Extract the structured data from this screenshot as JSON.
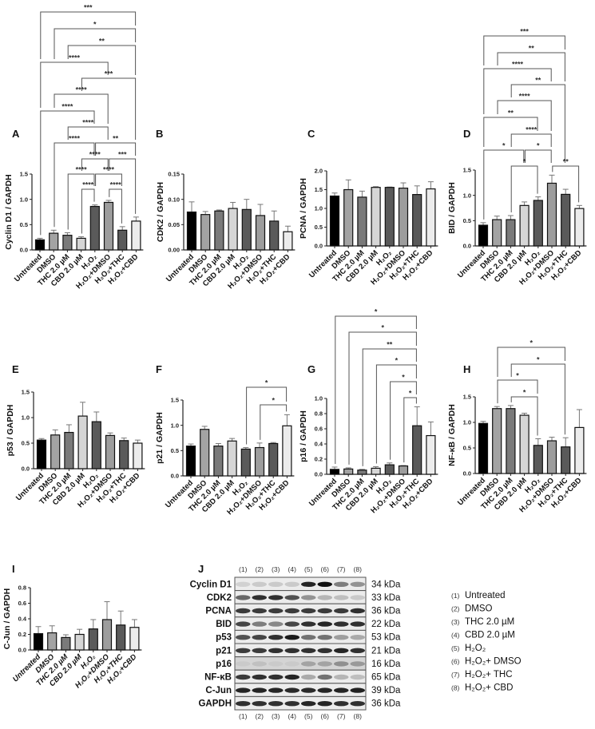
{
  "bar_colors": [
    "#000000",
    "#a3a3a3",
    "#7a7a7a",
    "#d6d6d6",
    "#5a5a5a",
    "#9d9d9d",
    "#5a5a5a",
    "#ececec"
  ],
  "chart_data": [
    {
      "panel": "A",
      "type": "bar",
      "ylabel": "Cyclin D1 / GAPDH",
      "categories": [
        "Untreated",
        "DMSO",
        "THC 2.0 µM",
        "CBD 2.0 µM",
        "H₂O₂",
        "H₂O₂+DMSO",
        "H₂O₂+THC",
        "H₂O₂+CBD"
      ],
      "values": [
        0.2,
        0.33,
        0.29,
        0.23,
        0.86,
        0.94,
        0.39,
        0.57
      ],
      "errors": [
        0.03,
        0.06,
        0.05,
        0.03,
        0.03,
        0.04,
        0.07,
        0.08
      ],
      "ylim": [
        0,
        1.5
      ],
      "yticks": [
        "0.0",
        "0.5",
        "1.0",
        "1.5"
      ],
      "comparisons": [
        {
          "from": 0,
          "to": 7,
          "label": "***"
        },
        {
          "from": 1,
          "to": 7,
          "label": "*"
        },
        {
          "from": 2,
          "to": 7,
          "label": "**"
        },
        {
          "from": 0,
          "to": 5,
          "label": "****"
        },
        {
          "from": 3,
          "to": 7,
          "label": "***"
        },
        {
          "from": 1,
          "to": 5,
          "label": "****"
        },
        {
          "from": 0,
          "to": 4,
          "label": "****"
        },
        {
          "from": 2,
          "to": 5,
          "label": "****"
        },
        {
          "from": 1,
          "to": 4,
          "label": "****"
        },
        {
          "from": 4,
          "to": 7,
          "label": "**"
        },
        {
          "from": 3,
          "to": 5,
          "label": "****"
        },
        {
          "from": 5,
          "to": 7,
          "label": "***"
        },
        {
          "from": 2,
          "to": 4,
          "label": "****"
        },
        {
          "from": 4,
          "to": 6,
          "label": "****"
        },
        {
          "from": 3,
          "to": 4,
          "label": "****"
        },
        {
          "from": 5,
          "to": 6,
          "label": "****"
        }
      ]
    },
    {
      "panel": "B",
      "type": "bar",
      "ylabel": "CDK2 / GAPDH",
      "categories": [
        "Untreated",
        "DMSO",
        "THC 2.0 µM",
        "CBD 2.0 µM",
        "H₂O₂",
        "H₂O₂+DMSO",
        "H₂O₂+THC",
        "H₂O₂+CBD"
      ],
      "values": [
        0.075,
        0.07,
        0.077,
        0.082,
        0.08,
        0.068,
        0.057,
        0.036
      ],
      "errors": [
        0.02,
        0.006,
        0.002,
        0.012,
        0.02,
        0.022,
        0.02,
        0.011
      ],
      "ylim": [
        0,
        0.15
      ],
      "yticks": [
        "0.00",
        "0.05",
        "0.10",
        "0.15"
      ],
      "comparisons": []
    },
    {
      "panel": "C",
      "type": "bar",
      "ylabel": "PCNA / GAPDH",
      "categories": [
        "Untreated",
        "DMSO",
        "THC 2.0 µM",
        "CBD 2.0 µM",
        "H₂O₂",
        "H₂O₂+DMSO",
        "H₂O₂+THC",
        "H₂O₂+CBD"
      ],
      "values": [
        1.33,
        1.5,
        1.3,
        1.56,
        1.56,
        1.54,
        1.37,
        1.52
      ],
      "errors": [
        0.08,
        0.26,
        0.16,
        0.02,
        0.01,
        0.14,
        0.23,
        0.19
      ],
      "ylim": [
        0,
        2.0
      ],
      "yticks": [
        "0.0",
        "0.5",
        "1.0",
        "1.5",
        "2.0"
      ],
      "comparisons": []
    },
    {
      "panel": "D",
      "type": "bar",
      "ylabel": "BID / GAPDH",
      "categories": [
        "Untreated",
        "DMSO",
        "THC 2.0 µM",
        "CBD 2.0 µM",
        "H₂O₂",
        "H₂O₂+DMSO",
        "H₂O₂+THC",
        "H₂O₂+CBD"
      ],
      "values": [
        0.41,
        0.52,
        0.52,
        0.8,
        0.9,
        1.24,
        1.02,
        0.74
      ],
      "errors": [
        0.05,
        0.07,
        0.08,
        0.07,
        0.07,
        0.16,
        0.1,
        0.06
      ],
      "ylim": [
        0,
        1.5
      ],
      "yticks": [
        "0.0",
        "0.5",
        "1.0",
        "1.5"
      ],
      "comparisons": [
        {
          "from": 0,
          "to": 6,
          "label": "***"
        },
        {
          "from": 1,
          "to": 6,
          "label": "**"
        },
        {
          "from": 0,
          "to": 5,
          "label": "****"
        },
        {
          "from": 2,
          "to": 6,
          "label": "**"
        },
        {
          "from": 1,
          "to": 5,
          "label": "****"
        },
        {
          "from": 0,
          "to": 4,
          "label": "**"
        },
        {
          "from": 2,
          "to": 5,
          "label": "****"
        },
        {
          "from": 0,
          "to": 3,
          "label": "*"
        },
        {
          "from": 3,
          "to": 5,
          "label": "*"
        },
        {
          "from": 2,
          "to": 4,
          "label": "*"
        },
        {
          "from": 5,
          "to": 7,
          "label": "**"
        }
      ]
    },
    {
      "panel": "E",
      "type": "bar",
      "ylabel": "p53 / GAPDH",
      "categories": [
        "Untreated",
        "DMSO",
        "THC 2.0 µM",
        "CBD 2.0 µM",
        "H₂O₂",
        "H₂O₂+DMSO",
        "H₂O₂+THC",
        "H₂O₂+CBD"
      ],
      "values": [
        0.56,
        0.66,
        0.71,
        1.03,
        0.92,
        0.65,
        0.55,
        0.5
      ],
      "errors": [
        0.03,
        0.1,
        0.15,
        0.27,
        0.19,
        0.05,
        0.05,
        0.06
      ],
      "ylim": [
        0,
        1.5
      ],
      "yticks": [
        "0.0",
        "0.5",
        "1.0",
        "1.5"
      ],
      "comparisons": []
    },
    {
      "panel": "F",
      "type": "bar",
      "ylabel": "p21 / GAPDH",
      "categories": [
        "Untreated",
        "DMSO",
        "THC 2.0 µM",
        "CBD 2.0 µM",
        "H₂O₂",
        "H₂O₂+DMSO",
        "H₂O₂+THC",
        "H₂O₂+CBD"
      ],
      "values": [
        0.59,
        0.92,
        0.59,
        0.69,
        0.53,
        0.56,
        0.64,
        0.99
      ],
      "errors": [
        0.04,
        0.06,
        0.05,
        0.05,
        0.03,
        0.09,
        0.02,
        0.22
      ],
      "ylim": [
        0,
        1.5
      ],
      "yticks": [
        "0.0",
        "0.5",
        "1.0",
        "1.5"
      ],
      "comparisons": [
        {
          "from": 4,
          "to": 7,
          "label": "*"
        },
        {
          "from": 5,
          "to": 7,
          "label": "*"
        }
      ]
    },
    {
      "panel": "G",
      "type": "bar",
      "ylabel": "p16 / GAPDH",
      "categories": [
        "Untreated",
        "DMSO",
        "THC 2.0 µM",
        "CBD 2.0 µM",
        "H₂O₂",
        "H₂O₂+DMSO",
        "H₂O₂+THC",
        "H₂O₂+CBD"
      ],
      "values": [
        0.065,
        0.07,
        0.055,
        0.08,
        0.125,
        0.11,
        0.64,
        0.51
      ],
      "errors": [
        0.03,
        0.015,
        0.01,
        0.02,
        0.025,
        0.005,
        0.25,
        0.18
      ],
      "ylim": [
        0,
        1.0
      ],
      "yticks": [
        "0.0",
        "0.2",
        "0.4",
        "0.6",
        "0.8",
        "1.0"
      ],
      "comparisons": [
        {
          "from": 0,
          "to": 6,
          "label": "*"
        },
        {
          "from": 1,
          "to": 6,
          "label": "*"
        },
        {
          "from": 2,
          "to": 6,
          "label": "**"
        },
        {
          "from": 3,
          "to": 6,
          "label": "*"
        },
        {
          "from": 4,
          "to": 6,
          "label": "*"
        },
        {
          "from": 5,
          "to": 6,
          "label": "*"
        }
      ]
    },
    {
      "panel": "H",
      "type": "bar",
      "ylabel": "NF-κB / GAPDH",
      "categories": [
        "Untreated",
        "DMSO",
        "THC 2.0 µM",
        "CBD 2.0 µM",
        "H₂O₂",
        "H₂O₂+DMSO",
        "H₂O₂+THC",
        "H₂O₂+CBD"
      ],
      "values": [
        0.98,
        1.27,
        1.27,
        1.14,
        0.55,
        0.64,
        0.52,
        0.9
      ],
      "errors": [
        0.04,
        0.04,
        0.06,
        0.04,
        0.13,
        0.07,
        0.18,
        0.35
      ],
      "ylim": [
        0,
        1.5
      ],
      "yticks": [
        "0.0",
        "0.5",
        "1.0",
        "1.5"
      ],
      "comparisons": [
        {
          "from": 1,
          "to": 6,
          "label": "*"
        },
        {
          "from": 2,
          "to": 6,
          "label": "*"
        },
        {
          "from": 1,
          "to": 4,
          "label": "*"
        },
        {
          "from": 2,
          "to": 4,
          "label": "*"
        }
      ]
    },
    {
      "panel": "I",
      "type": "bar",
      "ylabel": "C-Jun / GAPDH",
      "categories": [
        "Untreated",
        "DMSO",
        "THC 2.0 µM",
        "CBD 2.0 µM",
        "H₂O₂",
        "H₂O₂+DMSO",
        "H₂O₂+THC",
        "H₂O₂+CBD"
      ],
      "values": [
        0.21,
        0.22,
        0.16,
        0.2,
        0.27,
        0.39,
        0.32,
        0.29
      ],
      "errors": [
        0.09,
        0.09,
        0.035,
        0.065,
        0.12,
        0.23,
        0.18,
        0.1
      ],
      "ylim": [
        0,
        0.8
      ],
      "yticks": [
        "0.0",
        "0.2",
        "0.4",
        "0.6",
        "0.8"
      ],
      "comparisons": []
    }
  ],
  "blot": {
    "panel": "J",
    "lanes": [
      "(1)",
      "(2)",
      "(3)",
      "(4)",
      "(5)",
      "(6)",
      "(7)",
      "(8)"
    ],
    "rows": [
      {
        "protein": "Cyclin D1",
        "kda": "34 kDa",
        "bands": [
          0.12,
          0.15,
          0.15,
          0.15,
          0.9,
          1.0,
          0.5,
          0.4
        ]
      },
      {
        "protein": "CDK2",
        "kda": "33 kDa",
        "bands": [
          0.6,
          0.85,
          0.85,
          0.7,
          0.4,
          0.25,
          0.2,
          0.15
        ]
      },
      {
        "protein": "PCNA",
        "kda": "36 kDa",
        "bands": [
          0.8,
          0.8,
          0.8,
          0.8,
          0.8,
          0.8,
          0.8,
          0.85
        ]
      },
      {
        "protein": "BID",
        "kda": "22 kDa",
        "bands": [
          0.75,
          0.5,
          0.45,
          0.75,
          0.85,
          0.9,
          0.85,
          0.85
        ]
      },
      {
        "protein": "p53",
        "kda": "53 kDa",
        "bands": [
          0.7,
          0.75,
          0.85,
          0.95,
          0.55,
          0.55,
          0.35,
          0.3
        ]
      },
      {
        "protein": "p21",
        "kda": "21 kDa",
        "bands": [
          0.8,
          0.8,
          0.85,
          0.85,
          0.85,
          0.85,
          0.9,
          0.85
        ]
      },
      {
        "protein": "p16",
        "kda": "16 kDa",
        "bands": [
          0.05,
          0.1,
          0.05,
          0.05,
          0.25,
          0.25,
          0.35,
          0.3
        ]
      },
      {
        "protein": "NF-κB",
        "kda": "65 kDa",
        "bands": [
          0.8,
          0.85,
          0.85,
          0.9,
          0.3,
          0.55,
          0.25,
          0.2
        ]
      },
      {
        "protein": "C-Jun",
        "kda": "39 kDa",
        "bands": [
          0.9,
          0.9,
          0.9,
          0.88,
          0.88,
          0.9,
          0.9,
          0.92
        ]
      },
      {
        "protein": "GAPDH",
        "kda": "36 kDa",
        "bands": [
          0.85,
          0.85,
          0.85,
          0.85,
          0.9,
          0.9,
          0.85,
          0.85
        ]
      }
    ],
    "legend": [
      {
        "num": "(1)",
        "label": "Untreated"
      },
      {
        "num": "(2)",
        "label": "DMSO"
      },
      {
        "num": "(3)",
        "label": "THC 2.0 µM"
      },
      {
        "num": "(4)",
        "label": "CBD 2.0 µM"
      },
      {
        "num": "(5)",
        "label": "H₂O₂"
      },
      {
        "num": "(6)",
        "label": "H₂O₂+ DMSO"
      },
      {
        "num": "(7)",
        "label": "H₂O₂+ THC"
      },
      {
        "num": "(8)",
        "label": "H₂O₂+ CBD"
      }
    ]
  }
}
